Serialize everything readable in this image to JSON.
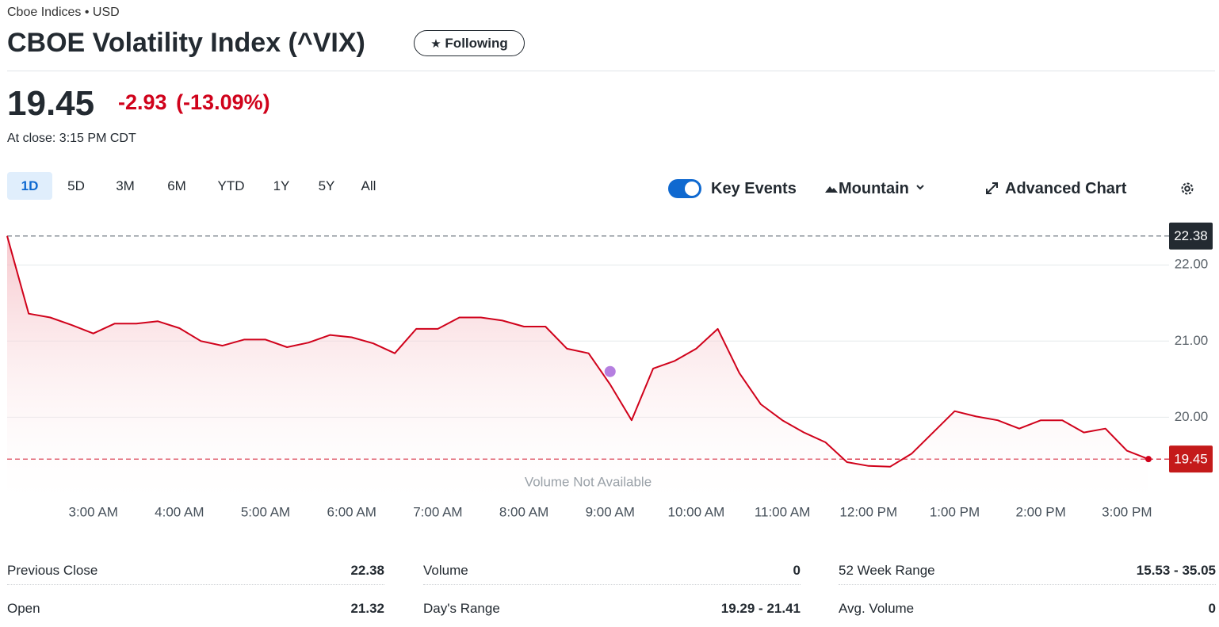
{
  "header": {
    "exchange": "Cboe Indices",
    "separator": "•",
    "currency": "USD",
    "title": "CBOE Volatility Index (^VIX)",
    "follow_button": "Following"
  },
  "quote": {
    "price": "19.45",
    "change": "-2.93",
    "change_percent": "(-13.09%)",
    "status": "At close: 3:15 PM CDT"
  },
  "toolbar": {
    "ranges": [
      "1D",
      "5D",
      "3M",
      "6M",
      "YTD",
      "1Y",
      "5Y",
      "All"
    ],
    "selected_range": "1D",
    "key_events": "Key Events",
    "key_events_enabled": true,
    "chart_style": "Mountain",
    "advanced_chart": "Advanced Chart"
  },
  "chart_data": {
    "type": "area",
    "color": "#d0021b",
    "x": [
      "2:00 AM",
      "2:15 AM",
      "2:30 AM",
      "2:45 AM",
      "3:00 AM",
      "3:15 AM",
      "3:30 AM",
      "3:45 AM",
      "4:00 AM",
      "4:15 AM",
      "4:30 AM",
      "4:45 AM",
      "5:00 AM",
      "5:15 AM",
      "5:30 AM",
      "5:45 AM",
      "6:00 AM",
      "6:15 AM",
      "6:30 AM",
      "6:45 AM",
      "7:00 AM",
      "7:15 AM",
      "7:30 AM",
      "7:45 AM",
      "8:00 AM",
      "8:15 AM",
      "8:30 AM",
      "8:45 AM",
      "9:00 AM",
      "9:15 AM",
      "9:30 AM",
      "9:45 AM",
      "10:00 AM",
      "10:15 AM",
      "10:30 AM",
      "10:45 AM",
      "11:00 AM",
      "11:15 AM",
      "11:30 AM",
      "11:45 AM",
      "12:00 PM",
      "12:15 PM",
      "12:30 PM",
      "12:45 PM",
      "1:00 PM",
      "1:15 PM",
      "1:30 PM",
      "1:45 PM",
      "2:00 PM",
      "2:15 PM",
      "2:30 PM",
      "2:45 PM",
      "3:00 PM",
      "3:15 PM"
    ],
    "values": [
      22.38,
      21.36,
      21.31,
      21.21,
      21.1,
      21.23,
      21.23,
      21.26,
      21.17,
      21.0,
      20.94,
      21.02,
      21.02,
      20.92,
      20.98,
      21.08,
      21.05,
      20.97,
      20.84,
      21.16,
      21.16,
      21.31,
      21.31,
      21.27,
      21.19,
      21.19,
      20.9,
      20.84,
      20.43,
      19.96,
      20.64,
      20.74,
      20.9,
      21.16,
      20.58,
      20.17,
      19.96,
      19.8,
      19.67,
      19.41,
      19.36,
      19.35,
      19.52,
      19.8,
      20.08,
      20.01,
      19.96,
      19.85,
      19.96,
      19.96,
      19.8,
      19.85,
      19.56,
      19.45
    ],
    "xlim": [
      "2:00 AM",
      "3:15 PM"
    ],
    "xticks": [
      "3:00 AM",
      "4:00 AM",
      "5:00 AM",
      "6:00 AM",
      "7:00 AM",
      "8:00 AM",
      "9:00 AM",
      "10:00 AM",
      "11:00 AM",
      "12:00 PM",
      "1:00 PM",
      "2:00 PM",
      "3:00 PM"
    ],
    "ylim": [
      18.9,
      22.7
    ],
    "yticks": [
      {
        "value": 20,
        "label": "20.00"
      },
      {
        "value": 21,
        "label": "21.00"
      },
      {
        "value": 22,
        "label": "22.00"
      }
    ],
    "grid": true,
    "reference_lines": [
      {
        "value": 22.38,
        "color": "#6e7780",
        "label_background": "#232a31"
      },
      {
        "value": 19.45,
        "color": "#d0021b",
        "label_background": "#c41a1a"
      }
    ],
    "key_event": {
      "x": "9:00 AM",
      "value": 20.6,
      "color": "#b57fe0"
    },
    "note": "Volume Not Available"
  },
  "stats": [
    [
      {
        "label": "Previous Close",
        "value": "22.38"
      },
      {
        "label": "Open",
        "value": "21.32"
      }
    ],
    [
      {
        "label": "Volume",
        "value": "0"
      },
      {
        "label": "Day's Range",
        "value": "19.29 - 21.41"
      }
    ],
    [
      {
        "label": "52 Week Range",
        "value": "15.53 - 35.05"
      },
      {
        "label": "Avg. Volume",
        "value": "0"
      }
    ]
  ]
}
